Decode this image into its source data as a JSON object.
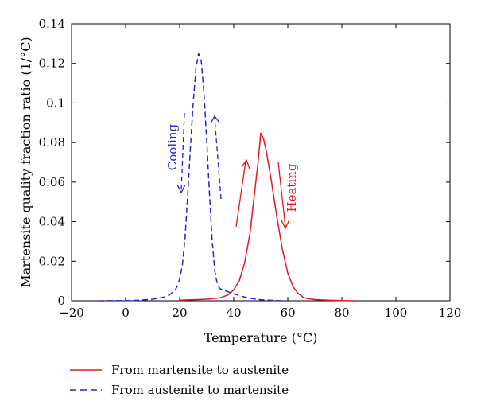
{
  "chart_data": {
    "type": "line",
    "xlabel": "Temperature (°C)",
    "ylabel": "Martensite quality fraction ratio (1/°C)",
    "xlim": [
      -20,
      120
    ],
    "ylim": [
      0,
      0.14
    ],
    "xticks": [
      -20,
      0,
      20,
      40,
      60,
      80,
      100,
      120
    ],
    "xtick_labels": [
      "−20",
      "0",
      "20",
      "40",
      "60",
      "80",
      "100",
      "120"
    ],
    "yticks": [
      0,
      0.02,
      0.04,
      0.06,
      0.08,
      0.1,
      0.12,
      0.14
    ],
    "ytick_labels": [
      "0",
      "0.02",
      "0.04",
      "0.06",
      "0.08",
      "0.1",
      "0.12",
      "0.14"
    ],
    "grid": false,
    "legend_position": "below-plot",
    "series": [
      {
        "name": "From martensite to austenite",
        "color": "#e8141b",
        "style": "solid",
        "x": [
          20,
          30,
          35,
          38,
          40,
          42,
          44,
          46,
          48,
          49,
          50,
          51,
          52,
          54,
          56,
          58,
          60,
          62,
          64,
          66,
          70,
          75,
          80,
          85
        ],
        "y": [
          0.0003,
          0.0008,
          0.0015,
          0.003,
          0.0055,
          0.01,
          0.019,
          0.034,
          0.058,
          0.07,
          0.0848,
          0.082,
          0.076,
          0.06,
          0.042,
          0.026,
          0.014,
          0.007,
          0.0035,
          0.0015,
          0.0006,
          0.0003,
          0.0001,
          0.0
        ]
      },
      {
        "name": "From austenite to martensite",
        "color": "#2323d8",
        "style": "dashed",
        "x": [
          -10,
          0,
          5,
          10,
          12,
          14,
          16,
          18,
          19,
          20,
          21,
          22,
          23,
          24,
          25,
          26,
          27,
          28,
          29,
          30,
          31,
          32,
          33,
          34,
          35,
          36,
          38,
          40,
          45,
          50,
          55,
          58
        ],
        "y": [
          0,
          0.0001,
          0.0003,
          0.0008,
          0.0012,
          0.0018,
          0.0028,
          0.0048,
          0.007,
          0.011,
          0.018,
          0.032,
          0.054,
          0.078,
          0.1,
          0.117,
          0.125,
          0.121,
          0.105,
          0.081,
          0.055,
          0.031,
          0.015,
          0.008,
          0.006,
          0.0055,
          0.0045,
          0.0035,
          0.0015,
          0.0005,
          0.0002,
          0.0
        ]
      }
    ],
    "annotations": [
      {
        "text": "Cooling",
        "color": "#2323d8"
      },
      {
        "text": "Heating",
        "color": "#e8141b"
      }
    ]
  }
}
